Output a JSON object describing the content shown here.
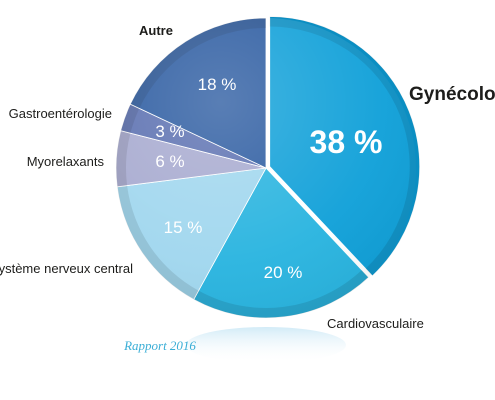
{
  "chart_data": {
    "type": "pie",
    "title": "Gynécologie",
    "footnote": "Rapport 2016",
    "slices": [
      {
        "label": "Gynécologie",
        "value": 38,
        "value_label": "38 %",
        "color": "#0d9fd8"
      },
      {
        "label": "Cardiovasculaire",
        "value": 20,
        "value_label": "20 %",
        "color": "#26b3df"
      },
      {
        "label": "Système nerveux central",
        "value": 15,
        "value_label": "15 %",
        "color": "#9fd6ee"
      },
      {
        "label": "Myorelaxants",
        "value": 6,
        "value_label": "6 %",
        "color": "#a6a9cf"
      },
      {
        "label": "Gastroentérologie",
        "value": 3,
        "value_label": "3 %",
        "color": "#5a6fb0"
      },
      {
        "label": "Autre",
        "value": 18,
        "value_label": "18 %",
        "color": "#2a5aa0"
      }
    ],
    "start_angle_deg": 0,
    "direction": "clockwise"
  }
}
